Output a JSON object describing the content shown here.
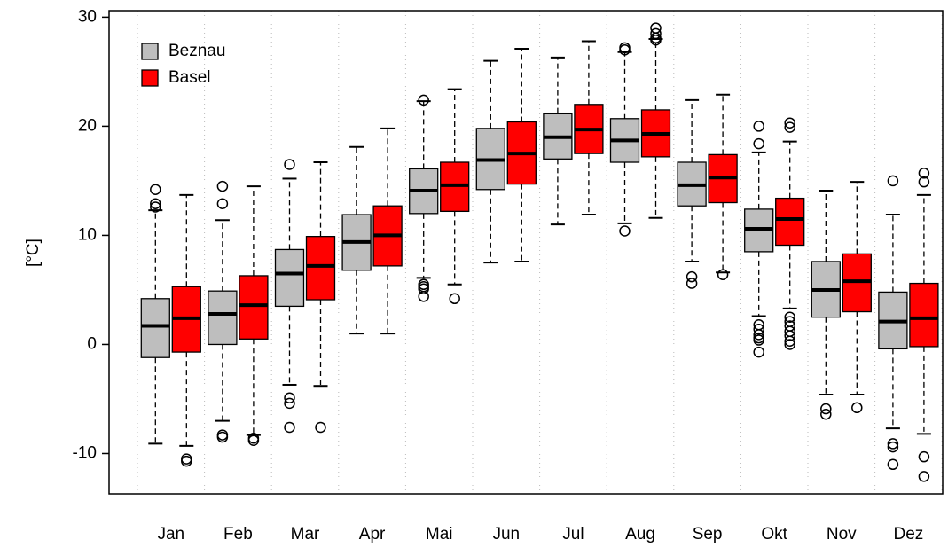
{
  "chart_data": {
    "type": "boxplot",
    "ylabel": "[°C]",
    "categories": [
      "Jan",
      "Feb",
      "Mar",
      "Apr",
      "Mai",
      "Jun",
      "Jul",
      "Aug",
      "Sep",
      "Okt",
      "Nov",
      "Dez"
    ],
    "ylim": [
      -13.7,
      30.6
    ],
    "yticks": [
      -10,
      0,
      10,
      20,
      30
    ],
    "grid": true,
    "legend": "upper left",
    "series": [
      {
        "name": "Beznau",
        "color": "#bebebe",
        "low": [
          -9.1,
          -7.0,
          -3.7,
          1.0,
          6.1,
          7.5,
          11.0,
          11.1,
          7.6,
          2.6,
          -4.6,
          -7.7
        ],
        "q1": [
          -1.2,
          0.0,
          3.5,
          6.8,
          12.0,
          14.2,
          17.0,
          16.7,
          12.7,
          8.5,
          2.5,
          -0.4
        ],
        "median": [
          1.7,
          2.8,
          6.5,
          9.4,
          14.1,
          16.9,
          19.0,
          18.7,
          14.6,
          10.6,
          5.0,
          2.1
        ],
        "q3": [
          4.2,
          4.9,
          8.7,
          11.9,
          16.1,
          19.8,
          21.2,
          20.7,
          16.7,
          12.4,
          7.6,
          4.8
        ],
        "high": [
          12.3,
          11.4,
          15.2,
          18.1,
          22.3,
          26.0,
          26.3,
          26.8,
          22.4,
          17.6,
          14.1,
          11.9
        ],
        "outliers": [
          [
            14.2,
            12.9,
            12.6
          ],
          [
            14.5,
            12.9,
            -8.3,
            -8.5
          ],
          [
            16.5,
            -4.9,
            -5.4,
            -7.6
          ],
          [],
          [
            22.4,
            5.5,
            5.3,
            5.1,
            4.4
          ],
          [],
          [],
          [
            27.2,
            27.0,
            10.4
          ],
          [
            6.2,
            5.6
          ],
          [
            20.0,
            18.4,
            1.8,
            1.4,
            0.9,
            0.6,
            0.4,
            -0.7
          ],
          [
            -5.9,
            -6.4
          ],
          [
            15.0,
            -9.1,
            -9.4,
            -11.0
          ]
        ]
      },
      {
        "name": "Basel",
        "color": "#ff0000",
        "low": [
          -9.3,
          -8.3,
          -3.8,
          1.0,
          5.5,
          7.6,
          11.9,
          11.6,
          6.6,
          3.3,
          -4.6,
          -8.2
        ],
        "q1": [
          -0.7,
          0.5,
          4.1,
          7.2,
          12.2,
          14.7,
          17.5,
          17.2,
          13.0,
          9.1,
          3.0,
          -0.2
        ],
        "median": [
          2.4,
          3.6,
          7.2,
          10.0,
          14.6,
          17.5,
          19.7,
          19.3,
          15.3,
          11.5,
          5.8,
          2.4
        ],
        "q3": [
          5.3,
          6.3,
          9.9,
          12.7,
          16.7,
          20.4,
          22.0,
          21.5,
          17.4,
          13.4,
          8.3,
          5.6
        ],
        "high": [
          13.7,
          14.5,
          16.7,
          19.8,
          23.4,
          27.1,
          27.8,
          28.0,
          22.9,
          18.6,
          14.9,
          13.7
        ],
        "outliers": [
          [
            -10.5,
            -10.7
          ],
          [
            -8.6,
            -8.8
          ],
          [
            -7.6
          ],
          [],
          [
            4.2
          ],
          [],
          [],
          [
            29.0,
            28.5,
            28.1,
            27.9
          ],
          [
            6.4
          ],
          [
            20.3,
            19.9,
            2.5,
            2.1,
            1.7,
            1.2,
            0.8,
            0.3,
            0.0
          ],
          [
            -5.8
          ],
          [
            15.7,
            14.9,
            -10.3,
            -12.1
          ]
        ]
      }
    ]
  }
}
